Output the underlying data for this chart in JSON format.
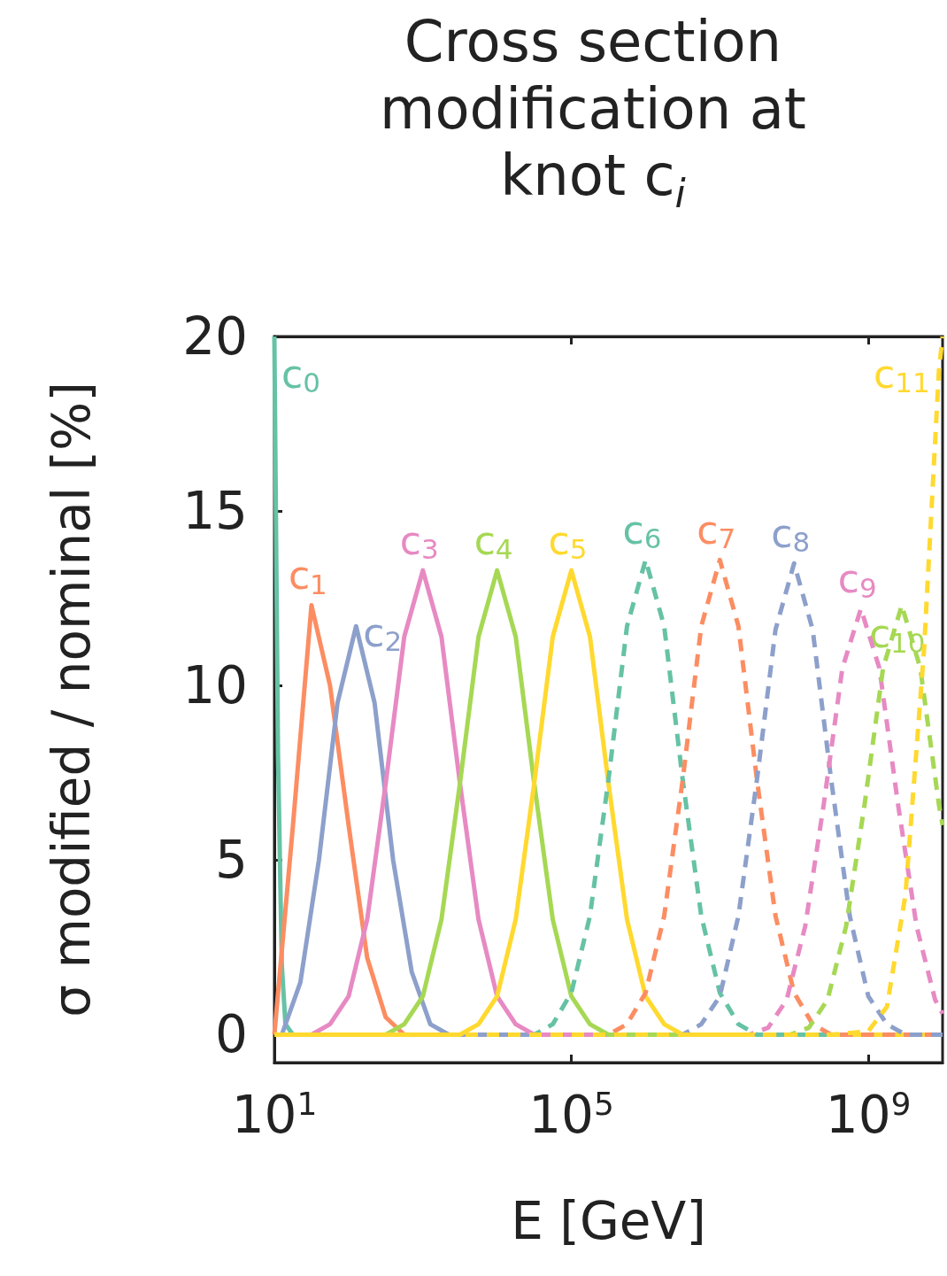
{
  "chart_data": {
    "type": "line",
    "title": "Cross section modification at knot c$_{i}$",
    "xlabel": "E [GeV]",
    "ylabel": "σ modified / nominal [%]",
    "log": "x",
    "xlim": [
      10,
      10000000000
    ],
    "xticks": [
      {
        "value": 10,
        "label": "10$^{1}$"
      },
      {
        "value": 100000,
        "label": "10$^{5}$"
      },
      {
        "value": 1000000000,
        "label": "10$^{9}$"
      }
    ],
    "ylim": [
      -0.8,
      20
    ],
    "yticks": [
      0,
      5,
      10,
      15,
      20
    ],
    "grid": false,
    "legend": false,
    "marker": "none",
    "series": [
      {
        "name": "c$_{0}$",
        "color": "#66c2a5",
        "line_style": "solid",
        "x": [
          10,
          11.2,
          12.6,
          14.1,
          17.8,
          10000000000
        ],
        "values": [
          20,
          8,
          2,
          0.3,
          0,
          0
        ]
      },
      {
        "name": "c$_{1}$",
        "color": "#fc8d62",
        "line_style": "solid",
        "x": [
          10,
          17.8,
          31.6,
          56.2,
          100,
          178,
          316,
          562,
          10000000000
        ],
        "values": [
          0,
          6.0,
          12.3,
          10.0,
          6.0,
          2.2,
          0.5,
          0,
          0
        ]
      },
      {
        "name": "c$_{2}$",
        "color": "#8da0cb",
        "line_style": "solid",
        "x": [
          10,
          12.6,
          22.4,
          39.8,
          70.8,
          126,
          224,
          398,
          708,
          1260,
          2240,
          10000000000
        ],
        "values": [
          0,
          0,
          1.5,
          5.0,
          9.5,
          11.7,
          9.5,
          5.0,
          1.8,
          0.3,
          0,
          0
        ]
      },
      {
        "name": "c$_{3}$",
        "color": "#e78ac3",
        "line_style": "solid",
        "x": [
          10,
          31.6,
          56.2,
          100,
          178,
          316,
          562,
          1000,
          1780,
          3160,
          5620,
          10000,
          17800,
          31600,
          10000000000
        ],
        "values": [
          0,
          0,
          0.3,
          1.1,
          3.3,
          7.2,
          11.4,
          13.3,
          11.4,
          7.2,
          3.3,
          1.1,
          0.3,
          0,
          0
        ]
      },
      {
        "name": "c$_{4}$",
        "color": "#a6d854",
        "line_style": "solid",
        "x": [
          10,
          316,
          562,
          1000,
          1780,
          3160,
          5620,
          10000,
          17800,
          31600,
          56200,
          100000,
          178000,
          316000,
          10000000000
        ],
        "values": [
          0,
          0,
          0.3,
          1.1,
          3.3,
          7.2,
          11.4,
          13.3,
          11.4,
          7.2,
          3.3,
          1.1,
          0.3,
          0,
          0
        ]
      },
      {
        "name": "c$_{5}$",
        "color": "#ffd92f",
        "line_style": "solid",
        "x": [
          10,
          3160,
          5620,
          10000,
          17800,
          31600,
          56200,
          100000,
          178000,
          316000,
          562000,
          1000000,
          1780000,
          3160000,
          10000000000
        ],
        "values": [
          0,
          0,
          0.3,
          1.1,
          3.3,
          7.2,
          11.4,
          13.3,
          11.4,
          7.2,
          3.3,
          1.1,
          0.3,
          0,
          0
        ]
      },
      {
        "name": "c$_{6}$",
        "color": "#66c2a5",
        "line_style": "dashed",
        "x": [
          10,
          31600,
          56200,
          100000,
          178000,
          316000,
          562000,
          1000000,
          1780000,
          3160000,
          5620000,
          10000000,
          17800000,
          31600000,
          10000000000
        ],
        "values": [
          0,
          0,
          0.3,
          1.2,
          3.4,
          7.3,
          11.7,
          13.6,
          11.7,
          7.3,
          3.4,
          1.2,
          0.3,
          0,
          0
        ]
      },
      {
        "name": "c$_{7}$",
        "color": "#fc8d62",
        "line_style": "dashed",
        "x": [
          10,
          316000,
          562000,
          1000000,
          1780000,
          3160000,
          5620000,
          10000000,
          17800000,
          31600000,
          56200000,
          100000000,
          178000000,
          316000000,
          10000000000
        ],
        "values": [
          0,
          0,
          0.3,
          1.2,
          3.4,
          7.3,
          11.7,
          13.6,
          11.7,
          7.3,
          3.4,
          1.2,
          0.3,
          0,
          0
        ]
      },
      {
        "name": "c$_{8}$",
        "color": "#8da0cb",
        "line_style": "dashed",
        "x": [
          10,
          3160000,
          5620000,
          10000000,
          17800000,
          31600000,
          56200000,
          100000000,
          178000000,
          316000000,
          562000000,
          1000000000,
          1780000000,
          3160000000,
          10000000000
        ],
        "values": [
          0,
          0,
          0.3,
          1.1,
          3.4,
          7.3,
          11.6,
          13.5,
          11.6,
          7.3,
          3.4,
          1.1,
          0.3,
          0,
          0
        ]
      },
      {
        "name": "c$_{9}$",
        "color": "#e78ac3",
        "line_style": "dashed",
        "x": [
          10,
          25100000,
          44700000,
          79400000,
          141000000,
          251000000,
          447000000,
          794000000,
          1410000000,
          2510000000,
          4470000000,
          7940000000,
          10000000000
        ],
        "values": [
          0,
          0,
          0.2,
          1.0,
          3.1,
          6.6,
          10.5,
          12.2,
          10.5,
          6.6,
          3.1,
          1.0,
          0.6
        ]
      },
      {
        "name": "c$_{10}$",
        "color": "#a6d854",
        "line_style": "dashed",
        "x": [
          10,
          89100000,
          158000000,
          282000000,
          501000000,
          891000000,
          1580000000,
          2820000000,
          5010000000,
          8910000000,
          10000000000
        ],
        "values": [
          0,
          0,
          0.2,
          1.0,
          3.1,
          6.6,
          10.5,
          12.3,
          10.5,
          6.6,
          6.0
        ]
      },
      {
        "name": "c$_{11}$",
        "color": "#ffd92f",
        "line_style": "dashed",
        "x": [
          10,
          316000000,
          1000000000,
          1780000000,
          3160000000,
          5620000000,
          8910000000,
          10000000000
        ],
        "values": [
          0,
          0,
          0.1,
          0.8,
          4.0,
          11,
          19,
          20
        ]
      }
    ]
  }
}
